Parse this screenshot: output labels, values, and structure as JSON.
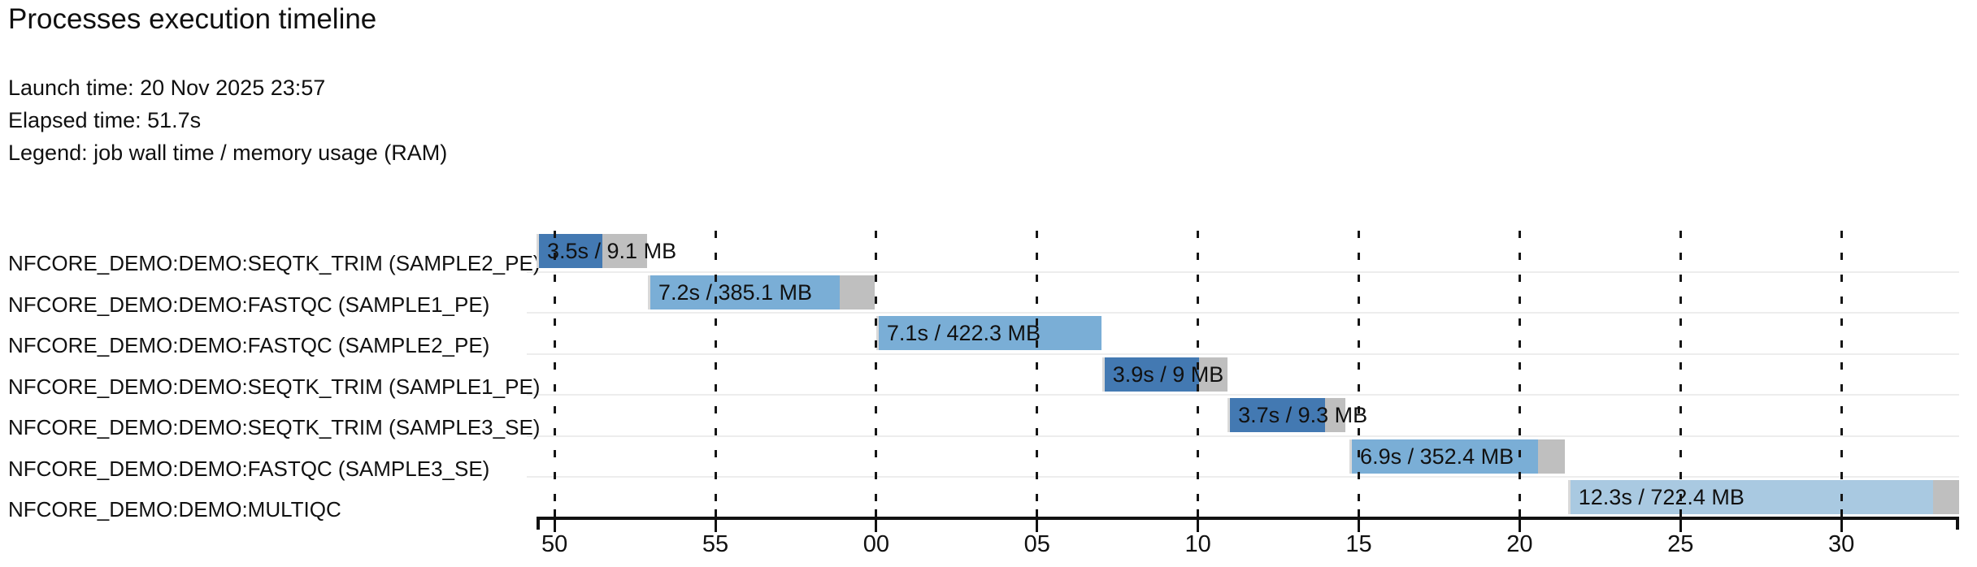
{
  "header": {
    "title": "Processes execution timeline",
    "launch_line": "Launch time: 20 Nov 2025 23:57",
    "elapsed_line": "Elapsed time: 51.7s",
    "legend_line": "Legend: job wall time / memory usage (RAM)"
  },
  "colors": {
    "dark_blue": "#4379b2",
    "medium_blue": "#7aaed6",
    "light_blue": "#a9c9e1",
    "tail_gray": "#bfbfbf",
    "edge_gray": "#d9d9d9",
    "grid_black": "#161616",
    "separator_gray": "#ededed"
  },
  "chart_data": {
    "type": "bar",
    "subtype": "gantt-timeline",
    "title": "Processes execution timeline",
    "launch_time": "20 Nov 2025 23:57",
    "elapsed_time_s": 51.7,
    "legend": "job wall time / memory usage (RAM)",
    "axis": {
      "unit": "seconds (mm wrap at minute boundary)",
      "window_start_s": 49.44,
      "window_end_s": 93.66,
      "ticks": [
        {
          "t": 50,
          "label": "50"
        },
        {
          "t": 55,
          "label": "55"
        },
        {
          "t": 60,
          "label": "00"
        },
        {
          "t": 65,
          "label": "05"
        },
        {
          "t": 70,
          "label": "10"
        },
        {
          "t": 75,
          "label": "15"
        },
        {
          "t": 80,
          "label": "20"
        },
        {
          "t": 85,
          "label": "25"
        },
        {
          "t": 90,
          "label": "30"
        }
      ]
    },
    "tasks": [
      {
        "name": "NFCORE_DEMO:DEMO:SEQTK_TRIM (SAMPLE2_PE)",
        "label": "3.5s / 9.1 MB",
        "start_s": 49.44,
        "run_s": 2.05,
        "tail_s": 1.39,
        "color": "dark_blue"
      },
      {
        "name": "NFCORE_DEMO:DEMO:FASTQC (SAMPLE1_PE)",
        "label": "7.2s / 385.1 MB",
        "start_s": 52.9,
        "run_s": 5.96,
        "tail_s": 1.09,
        "color": "medium_blue"
      },
      {
        "name": "NFCORE_DEMO:DEMO:FASTQC (SAMPLE2_PE)",
        "label": "7.1s / 422.3 MB",
        "start_s": 60.0,
        "run_s": 7.0,
        "tail_s": 0.0,
        "color": "medium_blue"
      },
      {
        "name": "NFCORE_DEMO:DEMO:SEQTK_TRIM (SAMPLE1_PE)",
        "label": "3.9s / 9 MB",
        "start_s": 67.02,
        "run_s": 3.01,
        "tail_s": 0.89,
        "color": "dark_blue"
      },
      {
        "name": "NFCORE_DEMO:DEMO:SEQTK_TRIM (SAMPLE3_SE)",
        "label": "3.7s / 9.3 MB",
        "start_s": 70.92,
        "run_s": 3.03,
        "tail_s": 0.63,
        "color": "dark_blue"
      },
      {
        "name": "NFCORE_DEMO:DEMO:FASTQC (SAMPLE3_SE)",
        "label": "6.9s / 352.4 MB",
        "start_s": 74.71,
        "run_s": 5.86,
        "tail_s": 0.83,
        "color": "medium_blue"
      },
      {
        "name": "NFCORE_DEMO:DEMO:MULTIQC",
        "label": "12.3s / 722.4 MB",
        "start_s": 81.5,
        "run_s": 11.35,
        "tail_s": 0.81,
        "color": "light_blue"
      }
    ]
  }
}
